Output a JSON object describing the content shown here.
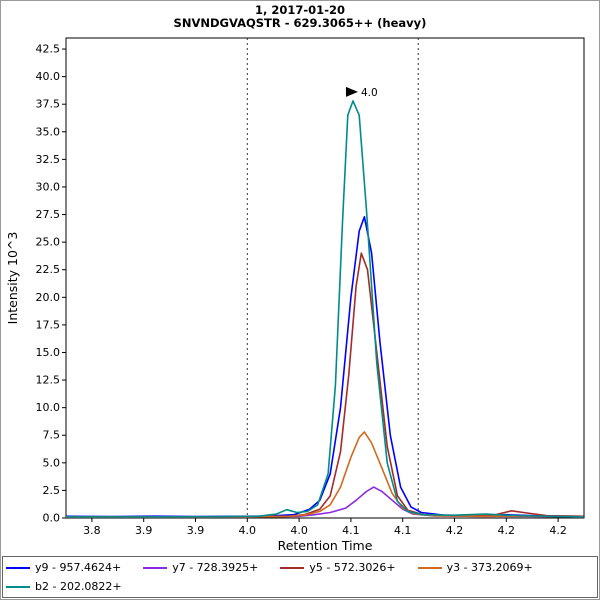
{
  "chart_data": {
    "type": "line",
    "title": "1, 2017-01-20",
    "subtitle": "SNVNDGVAQSTR - 629.3065++ (heavy)",
    "xlabel": "Retention Time",
    "ylabel": "Intensity 10^3",
    "xlim": [
      3.775,
      4.275
    ],
    "ylim": [
      0,
      43.5
    ],
    "grid": false,
    "legend_position": "bottom",
    "y_ticks": [
      0.0,
      2.5,
      5.0,
      7.5,
      10.0,
      12.5,
      15.0,
      17.5,
      20.0,
      22.5,
      25.0,
      27.5,
      30.0,
      32.5,
      35.0,
      37.5,
      40.0,
      42.5
    ],
    "x_ticks": [
      {
        "v": 3.8,
        "label": "3.8"
      },
      {
        "v": 3.85,
        "label": "3.9"
      },
      {
        "v": 3.9,
        "label": "3.9"
      },
      {
        "v": 3.95,
        "label": "4.0"
      },
      {
        "v": 4.0,
        "label": "4.0"
      },
      {
        "v": 4.05,
        "label": "4.1"
      },
      {
        "v": 4.1,
        "label": "4.1"
      },
      {
        "v": 4.15,
        "label": "4.2"
      },
      {
        "v": 4.2,
        "label": "4.2"
      },
      {
        "v": 4.25,
        "label": "4.2"
      }
    ],
    "integration_boundaries": [
      3.95,
      4.115
    ],
    "peak_annotation": {
      "text": "4.0",
      "x": 4.052,
      "y": 37.8,
      "color": "#008B8B"
    },
    "series": [
      {
        "id": "y9",
        "name": "y9 - 957.4624+",
        "color": "#0000FF",
        "points": [
          [
            3.775,
            0.15
          ],
          [
            3.82,
            0.13
          ],
          [
            3.86,
            0.16
          ],
          [
            3.9,
            0.13
          ],
          [
            3.94,
            0.15
          ],
          [
            3.97,
            0.18
          ],
          [
            3.995,
            0.3
          ],
          [
            4.01,
            0.8
          ],
          [
            4.02,
            1.6
          ],
          [
            4.03,
            4.0
          ],
          [
            4.04,
            10.0
          ],
          [
            4.05,
            20.0
          ],
          [
            4.058,
            26.0
          ],
          [
            4.063,
            27.3
          ],
          [
            4.07,
            24.0
          ],
          [
            4.078,
            16.0
          ],
          [
            4.088,
            7.5
          ],
          [
            4.098,
            2.8
          ],
          [
            4.108,
            1.0
          ],
          [
            4.118,
            0.5
          ],
          [
            4.14,
            0.25
          ],
          [
            4.17,
            0.2
          ],
          [
            4.2,
            0.3
          ],
          [
            4.23,
            0.2
          ],
          [
            4.274,
            0.15
          ]
        ]
      },
      {
        "id": "y7",
        "name": "y7 - 728.3925+",
        "color": "#8A2BE2",
        "points": [
          [
            3.775,
            0.1
          ],
          [
            3.85,
            0.1
          ],
          [
            3.95,
            0.1
          ],
          [
            4.0,
            0.15
          ],
          [
            4.015,
            0.3
          ],
          [
            4.03,
            0.5
          ],
          [
            4.045,
            0.9
          ],
          [
            4.055,
            1.6
          ],
          [
            4.065,
            2.4
          ],
          [
            4.072,
            2.8
          ],
          [
            4.08,
            2.4
          ],
          [
            4.09,
            1.6
          ],
          [
            4.1,
            0.8
          ],
          [
            4.11,
            0.35
          ],
          [
            4.13,
            0.2
          ],
          [
            4.17,
            0.15
          ],
          [
            4.22,
            0.15
          ],
          [
            4.274,
            0.1
          ]
        ]
      },
      {
        "id": "y5",
        "name": "y5 - 572.3026+",
        "color": "#A52A2A",
        "points": [
          [
            3.775,
            0.1
          ],
          [
            3.85,
            0.1
          ],
          [
            3.95,
            0.12
          ],
          [
            3.99,
            0.15
          ],
          [
            4.005,
            0.3
          ],
          [
            4.02,
            0.8
          ],
          [
            4.03,
            2.0
          ],
          [
            4.04,
            6.0
          ],
          [
            4.048,
            13.0
          ],
          [
            4.055,
            21.0
          ],
          [
            4.06,
            24.0
          ],
          [
            4.066,
            22.5
          ],
          [
            4.075,
            15.0
          ],
          [
            4.085,
            6.5
          ],
          [
            4.095,
            2.0
          ],
          [
            4.105,
            0.7
          ],
          [
            4.12,
            0.3
          ],
          [
            4.15,
            0.2
          ],
          [
            4.19,
            0.3
          ],
          [
            4.205,
            0.65
          ],
          [
            4.22,
            0.45
          ],
          [
            4.24,
            0.2
          ],
          [
            4.274,
            0.15
          ]
        ]
      },
      {
        "id": "y3",
        "name": "y3 - 373.2069+",
        "color": "#D2691E",
        "points": [
          [
            3.775,
            0.1
          ],
          [
            3.85,
            0.1
          ],
          [
            3.95,
            0.1
          ],
          [
            3.99,
            0.15
          ],
          [
            4.005,
            0.25
          ],
          [
            4.02,
            0.6
          ],
          [
            4.03,
            1.2
          ],
          [
            4.04,
            2.8
          ],
          [
            4.05,
            5.5
          ],
          [
            4.058,
            7.3
          ],
          [
            4.063,
            7.8
          ],
          [
            4.07,
            6.8
          ],
          [
            4.08,
            4.5
          ],
          [
            4.09,
            2.2
          ],
          [
            4.1,
            0.9
          ],
          [
            4.11,
            0.4
          ],
          [
            4.13,
            0.2
          ],
          [
            4.18,
            0.15
          ],
          [
            4.22,
            0.18
          ],
          [
            4.274,
            0.1
          ]
        ]
      },
      {
        "id": "b2",
        "name": "b2 - 202.0822+",
        "color": "#008B8B",
        "points": [
          [
            3.775,
            0.1
          ],
          [
            3.85,
            0.1
          ],
          [
            3.92,
            0.12
          ],
          [
            3.96,
            0.15
          ],
          [
            3.978,
            0.35
          ],
          [
            3.988,
            0.75
          ],
          [
            3.998,
            0.5
          ],
          [
            4.008,
            0.6
          ],
          [
            4.018,
            1.2
          ],
          [
            4.028,
            4.0
          ],
          [
            4.035,
            12.0
          ],
          [
            4.042,
            27.0
          ],
          [
            4.047,
            36.5
          ],
          [
            4.052,
            37.8
          ],
          [
            4.058,
            36.5
          ],
          [
            4.065,
            28.0
          ],
          [
            4.075,
            14.0
          ],
          [
            4.085,
            5.0
          ],
          [
            4.095,
            1.5
          ],
          [
            4.105,
            0.6
          ],
          [
            4.12,
            0.3
          ],
          [
            4.15,
            0.25
          ],
          [
            4.18,
            0.35
          ],
          [
            4.2,
            0.25
          ],
          [
            4.24,
            0.15
          ],
          [
            4.274,
            0.1
          ]
        ]
      }
    ]
  }
}
